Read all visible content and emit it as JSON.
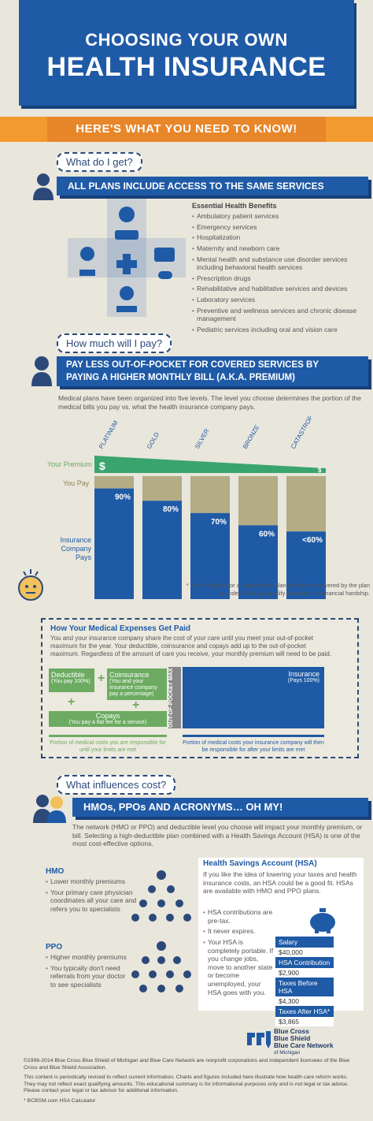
{
  "header": {
    "line1": "CHOOSING YOUR OWN",
    "line2": "HEALTH INSURANCE",
    "subtitle": "HERE'S WHAT YOU NEED TO KNOW!"
  },
  "section1": {
    "question": "What do I get?",
    "banner": "ALL PLANS INCLUDE ACCESS TO THE SAME SERVICES",
    "list_title": "Essential Health Benefits",
    "items": [
      "Ambulatory patient services",
      "Emergency services",
      "Hospitalization",
      "Maternity and newborn care",
      "Mental health and substance use disorder services including behavioral health services",
      "Prescription drugs",
      "Rehabilitative and habilitative services and devices",
      "Laboratory services",
      "Preventive and wellness services and chronic disease management",
      "Pediatric services including oral and vision care"
    ]
  },
  "section2": {
    "question": "How much will I pay?",
    "banner_line1": "PAY LESS OUT-OF-POCKET FOR COVERED SERVICES BY",
    "banner_line2": "PAYING A HIGHER MONTHLY BILL (A.K.A. PREMIUM)",
    "intro": "Medical plans have been organized into five levels. The level you choose determines the portion of the medical bills you pay vs. what the health insurance company pays.",
    "label_premium": "Your Premium",
    "label_youpay": "You Pay",
    "label_insurance": "Insurance Company Pays",
    "dollar": "$",
    "footnote": "* You're eligible for a catastrophic plan if everyone covered by the plan is under 30 or you qualify because of a financial hardship."
  },
  "chart_data": {
    "type": "bar",
    "categories": [
      "PLATINUM",
      "GOLD",
      "SILVER",
      "BRONZE",
      "CATASTROPHIC*"
    ],
    "series": [
      {
        "name": "Insurance Company Pays",
        "values": [
          90,
          80,
          70,
          60,
          55
        ]
      },
      {
        "name": "You Pay",
        "values": [
          10,
          20,
          30,
          40,
          45
        ]
      }
    ],
    "value_labels": [
      "90%",
      "80%",
      "70%",
      "60%",
      "<60%"
    ],
    "ylim": [
      0,
      100
    ]
  },
  "expenses": {
    "title": "How Your Medical Expenses Get Paid",
    "body": "You and your insurance company share the cost of your care until you meet your out-of-pocket maximum for the year. Your deductible, coinsurance and copays add up to the out-of-pocket maximum. Regardless of the amount of care you receive, your monthly premium will need to be paid.",
    "deductible": "Deductible",
    "deductible_sub": "(You pay 100%)",
    "coinsurance": "Coinsurance",
    "coinsurance_sub": "(You and your insurance company pay a percentage)",
    "copays": "Copays",
    "copays_sub": "(You pay a flat fee for a service)",
    "oop_max": "OUT-OF-POCKET MAX",
    "insurance": "Insurance",
    "insurance_sub": "(Pays 100%)",
    "left_caption": "Portion of medical costs you are responsible for until your limits are met",
    "right_caption": "Portion of medical costs your insurance company will then be responsible for after your limits are met"
  },
  "section3": {
    "question": "What influences cost?",
    "banner": "HMOs, PPOs AND ACRONYMS… OH MY!",
    "intro": "The network (HMO or PPO) and deductible level you choose will impact your monthly premium, or bill. Selecting a high-deductible plan combined with a Health Savings Account (HSA) is one of the most cost-effective options.",
    "hmo_title": "HMO",
    "hmo_items": [
      "Lower monthly premiums",
      "Your primary care physician coordinates all your care and refers you to specialists"
    ],
    "ppo_title": "PPO",
    "ppo_items": [
      "Higher monthly premiums",
      "You typically don't need referrals from your doctor to see specialists"
    ],
    "hsa_title": "Health Savings Account (HSA)",
    "hsa_intro": "If you like the idea of lowering your taxes and health insurance costs, an HSA could be a good fit. HSAs are available with HMO and PPO plans.",
    "hsa_items": [
      "HSA contributions are pre-tax.",
      "It never expires.",
      "Your HSA is completely portable. If you change jobs, move to another state or become unemployed, your HSA goes with you."
    ],
    "hsa_table": [
      {
        "label": "Salary",
        "value": "$40,000"
      },
      {
        "label": "HSA Contribution",
        "value": "$2,900"
      },
      {
        "label": "Taxes Before HSA",
        "value": "$4,300"
      },
      {
        "label": "Taxes After HSA*",
        "value": "$3,865"
      }
    ]
  },
  "logo": {
    "line1": "Blue Cross",
    "line2": "Blue Shield",
    "line3": "Blue Care Network",
    "line4": "of Michigan"
  },
  "footer": {
    "legal1": "©1996-2014 Blue Cross Blue Shield of Michigan and Blue Care Network are nonprofit corporations and independent licensees of the Blue Cross and Blue Shield Association.",
    "legal2": "This content is periodically revised to reflect current information. Charts and figures included here illustrate how health care reform works. They may not reflect exact qualifying amounts. This educational summary is for informational purposes only and is not legal or tax advice. Please contact your legal or tax advisor for additional information.",
    "source": "* BCBSM.com HSA Calculator"
  }
}
